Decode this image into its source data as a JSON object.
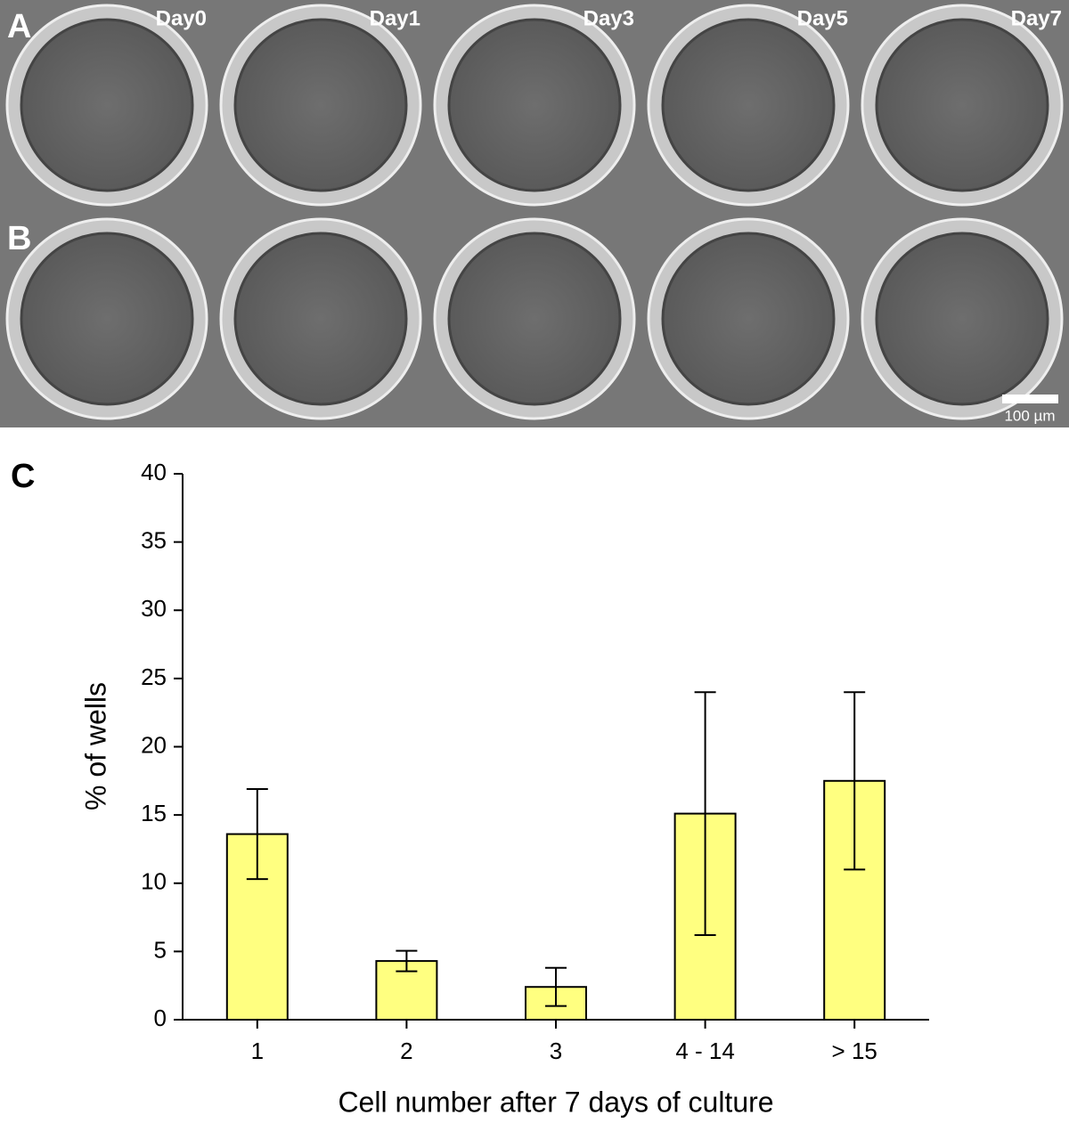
{
  "panels": {
    "row_labels": [
      "A",
      "B"
    ],
    "chart_label": "C",
    "days": [
      "Day0",
      "Day1",
      "Day3",
      "Day5",
      "Day7"
    ],
    "scale_bar": "100 µm"
  },
  "chart_data": {
    "type": "bar",
    "x_label": "Cell number after 7 days of culture",
    "y_label": "% of wells",
    "categories": [
      "1",
      "2",
      "3",
      "4 - 14",
      "> 15"
    ],
    "values": [
      13.6,
      4.3,
      2.4,
      15.1,
      17.5
    ],
    "errors": [
      3.3,
      0.75,
      1.4,
      8.9,
      6.5
    ],
    "color": "#ffff80",
    "ylim": [
      0,
      40
    ],
    "yticks": [
      0,
      5,
      10,
      15,
      20,
      25,
      30,
      35,
      40
    ],
    "grid": false
  }
}
